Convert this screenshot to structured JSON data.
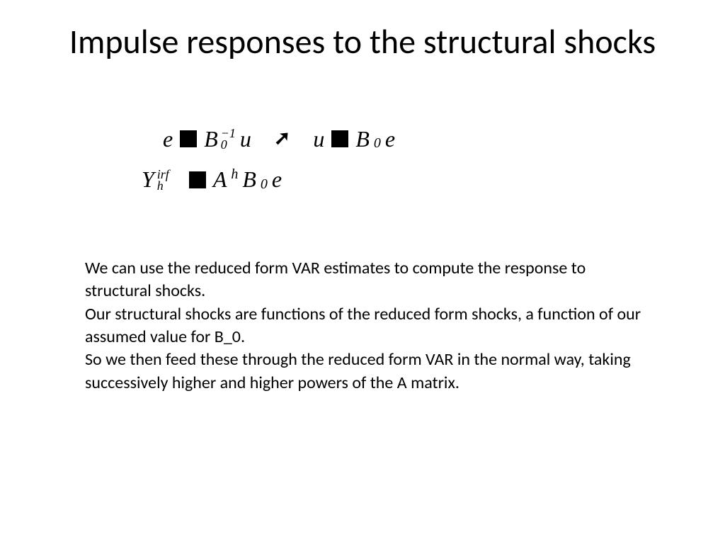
{
  "title": "Impulse responses to the structural shocks",
  "equations": {
    "line1": {
      "e1": "e",
      "B1": "B",
      "B1_sup": "−1",
      "B1_sub": "0",
      "u1": "u",
      "u2": "u",
      "B2": "B",
      "B2_sub": "0",
      "e2": "e"
    },
    "line2": {
      "Y": "Y",
      "Y_sup": "irf",
      "Y_sub": "h",
      "A": "A",
      "A_sup": "h",
      "B": "B",
      "B_sub": "0",
      "e": "e"
    }
  },
  "body": {
    "p1": "We can use the reduced form VAR estimates to compute the response to structural shocks.",
    "p2": "Our structural shocks are functions of the reduced form shocks, a function of our assumed value for B_0.",
    "p3": "So we then feed these through the reduced form VAR in the normal way, taking successively higher and higher powers of the A matrix."
  },
  "colors": {
    "background": "#ffffff",
    "text": "#000000"
  },
  "typography": {
    "title_fontsize": 48,
    "equation_fontsize": 32,
    "body_fontsize": 24
  }
}
